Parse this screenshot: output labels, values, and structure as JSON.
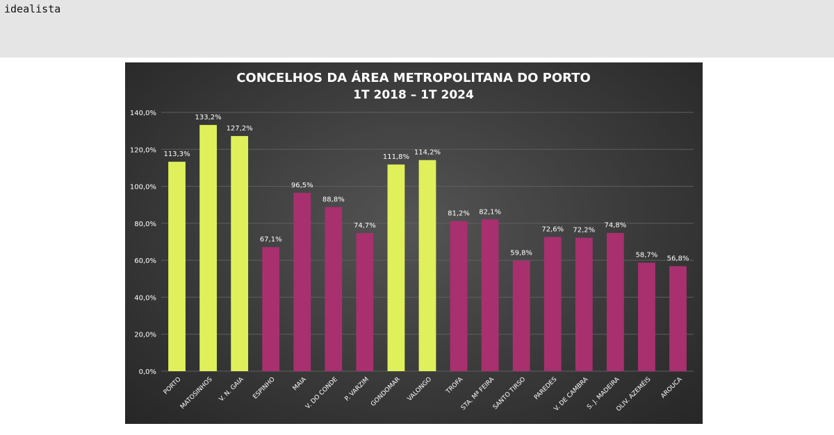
{
  "header": {
    "brand": "idealista"
  },
  "chart_data": {
    "type": "bar",
    "title": "CONCELHOS DA ÁREA METROPOLITANA DO PORTO",
    "subtitle": "1T 2018 – 1T 2024",
    "categories": [
      "PORTO",
      "MATOSINHOS",
      "V. N. GAIA",
      "ESPINHO",
      "MAIA",
      "V. DO CONDE",
      "P. VARZIM",
      "GONDOMAR",
      "VALONGO",
      "TROFA",
      "STA. Mª FEIRA",
      "SANTO TIRSO",
      "PAREDES",
      "V. DE CAMBRA",
      "S. J. MADEIRA",
      "OLIV. AZEMÉIS",
      "AROUCA"
    ],
    "values": [
      113.3,
      133.2,
      127.2,
      67.1,
      96.5,
      88.8,
      74.7,
      111.8,
      114.2,
      81.2,
      82.1,
      59.8,
      72.6,
      72.2,
      74.8,
      58.7,
      56.8
    ],
    "value_labels": [
      "113,3%",
      "133,2%",
      "127,2%",
      "67,1%",
      "96,5%",
      "88,8%",
      "74,7%",
      "111,8%",
      "114,2%",
      "81,2%",
      "82,1%",
      "59,8%",
      "72,6%",
      "72,2%",
      "74,8%",
      "58,7%",
      "56,8%"
    ],
    "highlight": [
      true,
      true,
      true,
      false,
      false,
      false,
      false,
      true,
      true,
      false,
      false,
      false,
      false,
      false,
      false,
      false,
      false
    ],
    "y_ticks": [
      0,
      20,
      40,
      60,
      80,
      100,
      120,
      140
    ],
    "y_tick_labels": [
      "0,0%",
      "20,0%",
      "40,0%",
      "60,0%",
      "80,0%",
      "100,0%",
      "120,0%",
      "140,0%"
    ],
    "ylim": [
      0,
      140
    ],
    "grid": true,
    "colors": {
      "highlight": "#dff05a",
      "default": "#a8306f",
      "grid": "#5f5f5f",
      "text": "#ffffff"
    }
  }
}
